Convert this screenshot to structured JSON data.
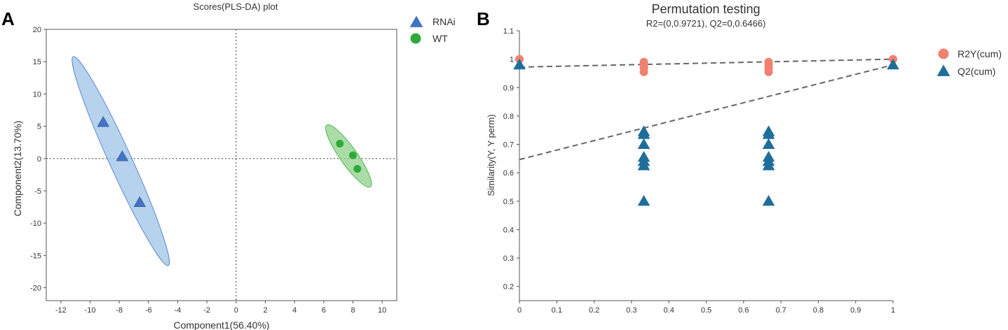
{
  "panels": {
    "a": {
      "letter": "A"
    },
    "b": {
      "letter": "B"
    }
  },
  "colors": {
    "rnai": "#4472C4",
    "rnai_ellipse": "#9DC3E6",
    "wt": "#2EAA3A",
    "wt_ellipse": "#8FD08A",
    "r2y": "#F08070",
    "q2": "#1F6E9A",
    "dash": "#666666"
  },
  "chart_data": [
    {
      "type": "scatter",
      "title": "Scores(PLS-DA) plot",
      "xlabel": "Component1(56.40%)",
      "ylabel": "Component2(13.70%)",
      "xlim": [
        -13,
        11
      ],
      "ylim": [
        -22,
        20
      ],
      "xticks": [
        -12,
        -10,
        -8,
        -6,
        -4,
        -2,
        0,
        2,
        4,
        6,
        8,
        10
      ],
      "yticks": [
        -20,
        -15,
        -10,
        -5,
        0,
        5,
        10,
        15,
        20
      ],
      "reference_lines": {
        "x": 0,
        "y": 0
      },
      "legend_position": "top-right",
      "series": [
        {
          "name": "RNAi",
          "marker": "triangle",
          "points": [
            [
              -9.1,
              5.6
            ],
            [
              -7.8,
              0.3
            ],
            [
              -6.6,
              -6.8
            ]
          ],
          "ellipse": {
            "center": [
              -7.9,
              -0.4
            ],
            "semi_major": 16.5,
            "semi_minor": 0.85,
            "axis_point": [
              -11,
              15
            ]
          }
        },
        {
          "name": "WT",
          "marker": "circle",
          "points": [
            [
              7.1,
              2.3
            ],
            [
              8.0,
              0.5
            ],
            [
              8.3,
              -1.6
            ]
          ],
          "ellipse": {
            "center": [
              7.7,
              0.4
            ],
            "semi_major": 5.0,
            "semi_minor": 0.6,
            "axis_point": [
              6.2,
              5.2
            ]
          }
        }
      ]
    },
    {
      "type": "scatter",
      "title": "Permutation testing",
      "subtitle": "R2=(0,0.9721), Q2=0,0.6466)",
      "xlabel": "",
      "ylabel": "Similarity(Y, Y perm)",
      "xlim": [
        0,
        1
      ],
      "ylim": [
        0.15,
        1.1
      ],
      "xticks": [
        0,
        0.1,
        0.2,
        0.3,
        0.4,
        0.5,
        0.6,
        0.7,
        0.8,
        0.9,
        1
      ],
      "yticks": [
        0.2,
        0.3,
        0.4,
        0.5,
        0.6,
        0.7,
        0.8,
        0.9,
        1,
        1.1
      ],
      "legend_position": "top-right",
      "series": [
        {
          "name": "R2Y(cum)",
          "marker": "circle",
          "points": [
            [
              0,
              1.0
            ],
            [
              0.333,
              0.99
            ],
            [
              0.333,
              0.98
            ],
            [
              0.333,
              0.97
            ],
            [
              0.333,
              0.955
            ],
            [
              0.667,
              0.99
            ],
            [
              0.667,
              0.98
            ],
            [
              0.667,
              0.97
            ],
            [
              0.667,
              0.955
            ],
            [
              1,
              1.0
            ]
          ],
          "regression": [
            [
              0,
              0.9721
            ],
            [
              1,
              1.0
            ]
          ]
        },
        {
          "name": "Q2(cum)",
          "marker": "triangle",
          "points": [
            [
              0,
              0.98
            ],
            [
              0.333,
              0.745
            ],
            [
              0.333,
              0.735
            ],
            [
              0.333,
              0.7
            ],
            [
              0.333,
              0.655
            ],
            [
              0.333,
              0.64
            ],
            [
              0.333,
              0.625
            ],
            [
              0.333,
              0.5
            ],
            [
              0.667,
              0.745
            ],
            [
              0.667,
              0.735
            ],
            [
              0.667,
              0.7
            ],
            [
              0.667,
              0.655
            ],
            [
              0.667,
              0.64
            ],
            [
              0.667,
              0.625
            ],
            [
              0.667,
              0.5
            ],
            [
              1,
              0.98
            ]
          ],
          "regression": [
            [
              0,
              0.6466
            ],
            [
              1,
              0.98
            ]
          ]
        }
      ]
    }
  ]
}
